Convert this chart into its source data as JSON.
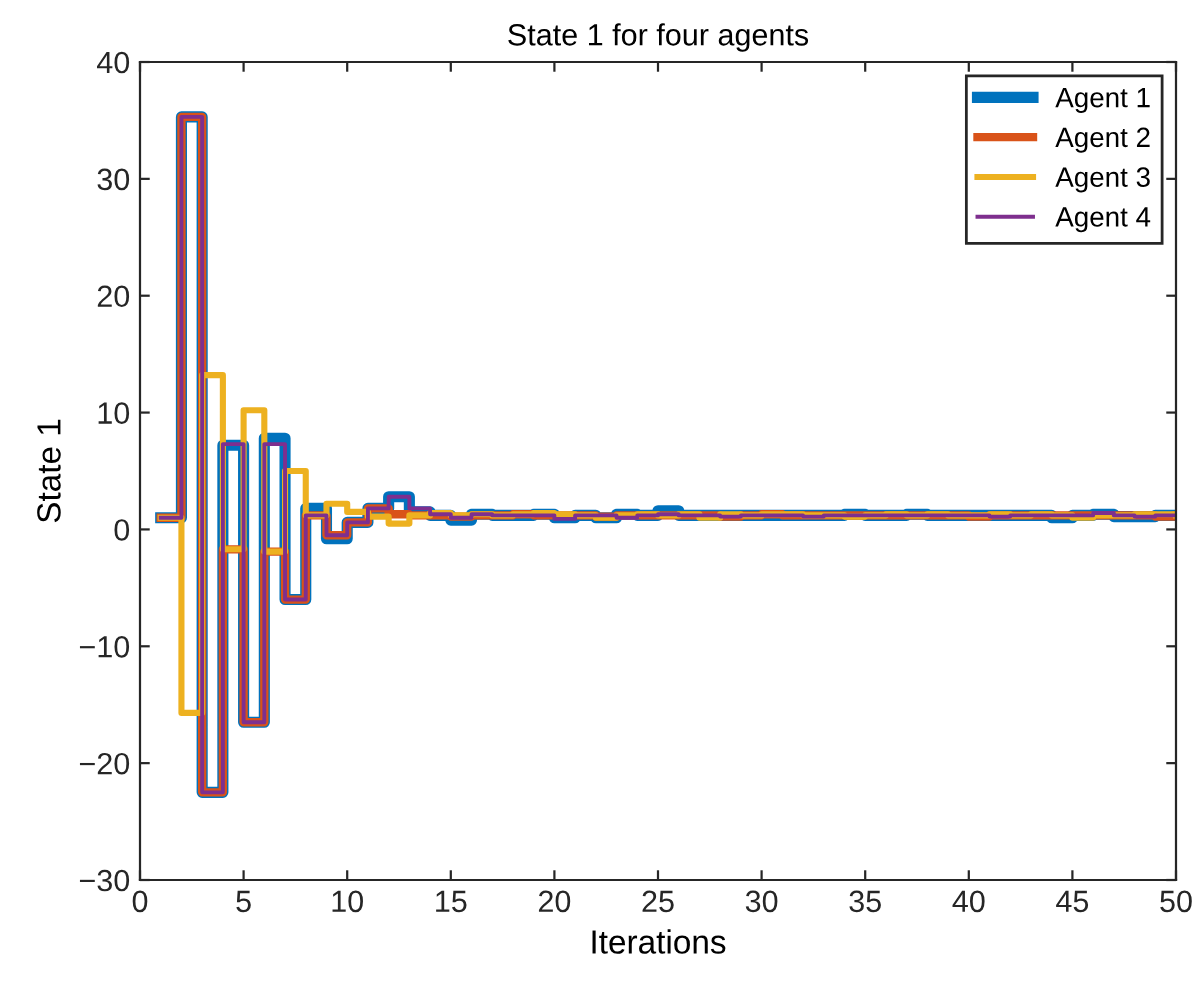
{
  "chart_data": {
    "type": "step",
    "title": "State 1 for four agents",
    "xlabel": "Iterations",
    "ylabel": "State 1",
    "x": [
      1,
      2,
      3,
      4,
      5,
      6,
      7,
      8,
      9,
      10,
      11,
      12,
      13,
      14,
      15,
      16,
      17,
      18,
      19,
      20,
      21,
      22,
      23,
      24,
      25,
      26,
      27,
      28,
      29,
      30,
      31,
      32,
      33,
      34,
      35,
      36,
      37,
      38,
      39,
      40,
      41,
      42,
      43,
      44,
      45,
      46,
      47,
      48,
      49,
      50
    ],
    "xlim": [
      0,
      50
    ],
    "ylim": [
      -30,
      40
    ],
    "xticks": [
      0,
      5,
      10,
      15,
      20,
      25,
      30,
      35,
      40,
      45,
      50
    ],
    "yticks": [
      -30,
      -20,
      -10,
      0,
      10,
      20,
      30,
      40
    ],
    "grid": false,
    "legend": "top right",
    "line_style": "solid",
    "marker": "none",
    "series": [
      {
        "name": "Agent 1",
        "color": "#0072bd",
        "values": [
          1,
          35.3,
          -22.5,
          7.2,
          -16.5,
          7.8,
          -6,
          1.8,
          -0.8,
          0.6,
          1.8,
          2.8,
          1.5,
          1.2,
          0.8,
          1.3,
          1.2,
          1.2,
          1.3,
          1.0,
          1.2,
          1.0,
          1.3,
          1.2,
          1.6,
          1.2,
          1.2,
          1.2,
          1.2,
          1.2,
          1.2,
          1.2,
          1.2,
          1.3,
          1.2,
          1.2,
          1.3,
          1.2,
          1.2,
          1.2,
          1.2,
          1.2,
          1.2,
          1.0,
          1.2,
          1.3,
          1.1,
          1.1,
          1.2,
          1.2
        ]
      },
      {
        "name": "Agent 2",
        "color": "#d95319",
        "values": [
          1,
          35.3,
          -22.5,
          -1.7,
          -16.5,
          -1.9,
          -6,
          1.2,
          -0.5,
          0.6,
          1.8,
          1.3,
          1.2,
          1.2,
          1.1,
          1.2,
          1.2,
          1.3,
          1.2,
          1.2,
          1.2,
          1.1,
          1.2,
          1.2,
          1.2,
          1.2,
          1.2,
          1.1,
          1.2,
          1.3,
          1.2,
          1.2,
          1.2,
          1.2,
          1.2,
          1.2,
          1.2,
          1.2,
          1.2,
          1.1,
          1.2,
          1.2,
          1.2,
          1.2,
          1.2,
          1.2,
          1.2,
          1.2,
          1.1,
          1.2
        ]
      },
      {
        "name": "Agent 3",
        "color": "#edb120",
        "values": [
          1,
          -15.7,
          13.2,
          -1.7,
          10.2,
          -1.9,
          5,
          1.2,
          2.2,
          1.5,
          1.1,
          0.5,
          1.2,
          1.4,
          1.2,
          1.3,
          1.2,
          1.3,
          1.4,
          1.3,
          1.2,
          1.0,
          1.2,
          1.3,
          1.2,
          1.3,
          1.0,
          1.3,
          1.2,
          1.3,
          1.3,
          1.2,
          1.2,
          1.1,
          1.2,
          1.3,
          1.2,
          1.3,
          1.2,
          1.2,
          1.3,
          1.2,
          1.3,
          1.2,
          1.0,
          1.2,
          1.2,
          1.3,
          1.3,
          1.2
        ]
      },
      {
        "name": "Agent 4",
        "color": "#7e2f8e",
        "values": [
          1,
          35.3,
          -22.5,
          7.3,
          -16.5,
          7.3,
          -6,
          1.2,
          -0.5,
          0.6,
          1.8,
          2.8,
          1.8,
          1.3,
          1.0,
          1.3,
          1.2,
          1.2,
          1.2,
          0.9,
          1.2,
          1.2,
          1.0,
          1.2,
          1.3,
          1.2,
          1.2,
          1.1,
          1.2,
          1.2,
          1.2,
          1.1,
          1.2,
          1.2,
          1.2,
          1.2,
          1.2,
          1.2,
          1.2,
          1.2,
          1.1,
          1.2,
          1.2,
          1.2,
          1.2,
          1.4,
          1.2,
          1.1,
          1.2,
          1.2
        ]
      }
    ]
  }
}
